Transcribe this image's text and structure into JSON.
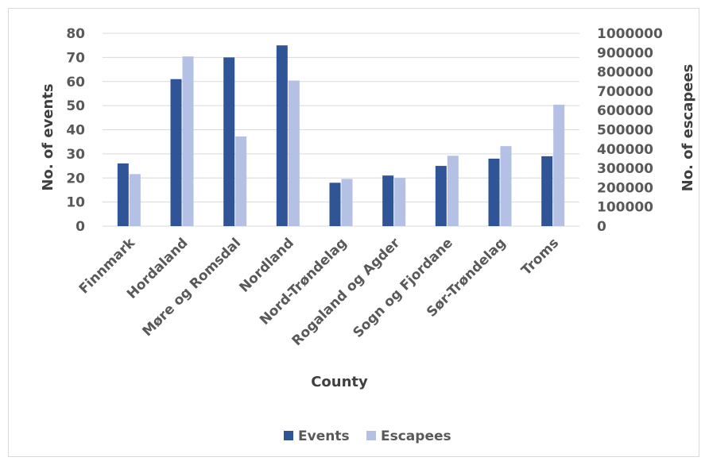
{
  "chart_data": {
    "type": "bar",
    "title": "",
    "xlabel": "County",
    "ylabel": "No. of events",
    "y2label": "No. of escapees",
    "categories": [
      "Finnmark",
      "Hordaland",
      "Møre og Romsdal",
      "Nordland",
      "Nord-Trøndelag",
      "Rogaland og Agder",
      "Sogn og Fjordane",
      "Sør-Trøndelag",
      "Troms"
    ],
    "series": [
      {
        "name": "Events",
        "axis": "left",
        "color": "#2f5597",
        "values": [
          26,
          61,
          70,
          75,
          18,
          21,
          25,
          28,
          29
        ]
      },
      {
        "name": "Escapees",
        "axis": "right",
        "color": "#b4c0e4",
        "values": [
          270000,
          880000,
          465000,
          755000,
          245000,
          250000,
          365000,
          415000,
          630000
        ]
      }
    ],
    "ylim": [
      0,
      80
    ],
    "y2lim": [
      0,
      1000000
    ],
    "yticks": [
      "0",
      "10",
      "20",
      "30",
      "40",
      "50",
      "60",
      "70",
      "80"
    ],
    "y2ticks": [
      "0",
      "100000",
      "200000",
      "300000",
      "400000",
      "500000",
      "600000",
      "700000",
      "800000",
      "900000",
      "1000000"
    ],
    "grid": true,
    "legend_position": "bottom"
  }
}
